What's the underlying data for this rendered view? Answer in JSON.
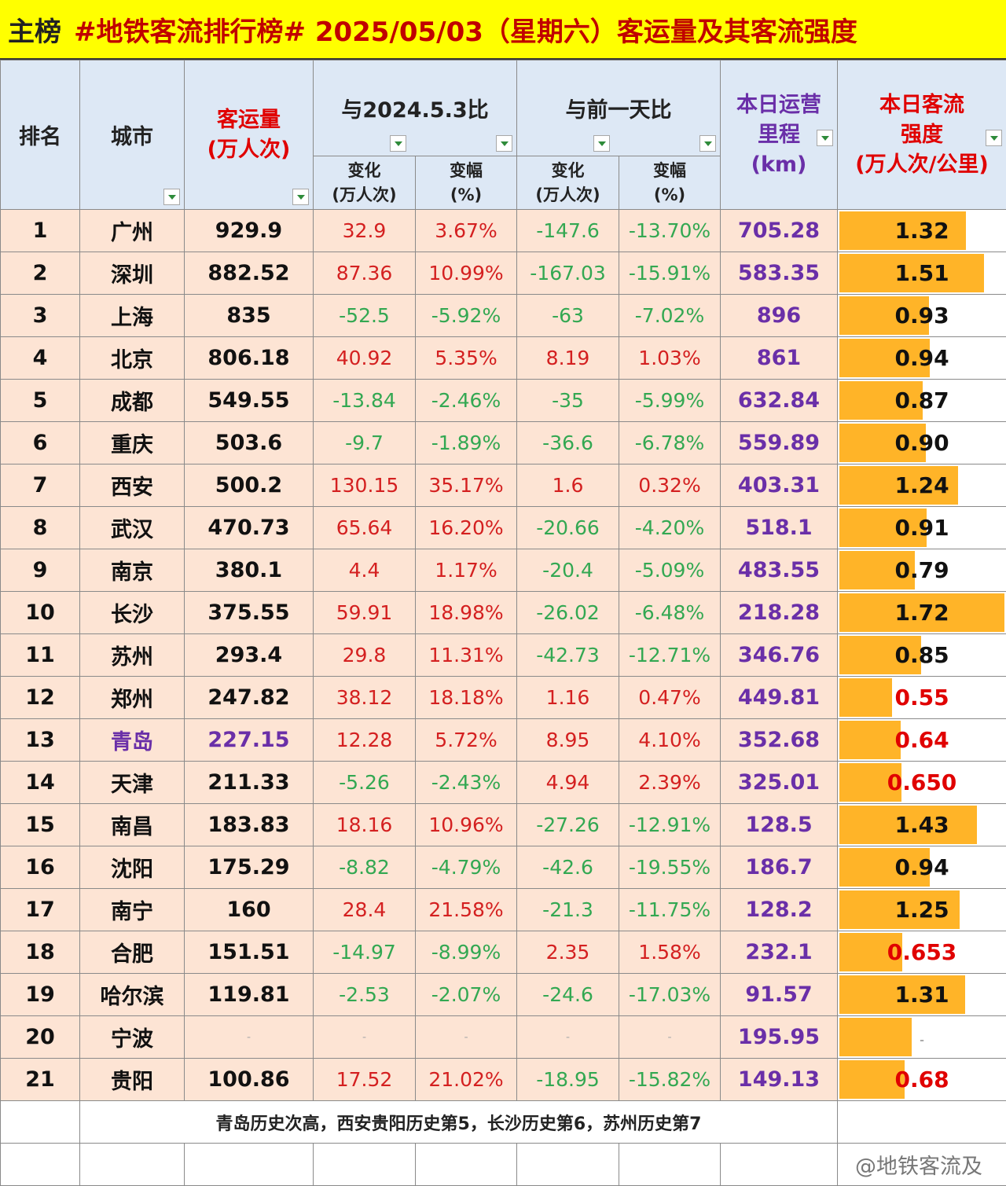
{
  "title": {
    "main": "主榜",
    "rest": "#地铁客流排行榜# 2025/05/03（星期六）客运量及其客流强度"
  },
  "headers": {
    "rank": "排名",
    "city": "城市",
    "volume_line1": "客运量",
    "volume_line2": "(万人次)",
    "yoy_group": "与2024.5.3比",
    "dod_group": "与前一天比",
    "change_line1": "变化",
    "change_line2": "(万人次)",
    "pct_line1": "变幅",
    "pct_line2": "(%)",
    "km_line1": "本日运营",
    "km_line2": "里程",
    "km_line3": "(km)",
    "int_line1": "本日客流",
    "int_line2": "强度",
    "int_line3": "(万人次/公里)"
  },
  "rows": [
    {
      "rank": "1",
      "city": "广州",
      "volume": "929.9",
      "yoy_chg": "32.9",
      "yoy_pct": "3.67%",
      "dod_chg": "-147.6",
      "dod_pct": "-13.70%",
      "km": "705.28",
      "intensity": "1.32",
      "intensity_value": 1.32
    },
    {
      "rank": "2",
      "city": "深圳",
      "volume": "882.52",
      "yoy_chg": "87.36",
      "yoy_pct": "10.99%",
      "dod_chg": "-167.03",
      "dod_pct": "-15.91%",
      "km": "583.35",
      "intensity": "1.51",
      "intensity_value": 1.51
    },
    {
      "rank": "3",
      "city": "上海",
      "volume": "835",
      "yoy_chg": "-52.5",
      "yoy_pct": "-5.92%",
      "dod_chg": "-63",
      "dod_pct": "-7.02%",
      "km": "896",
      "intensity": "0.93",
      "intensity_value": 0.93
    },
    {
      "rank": "4",
      "city": "北京",
      "volume": "806.18",
      "yoy_chg": "40.92",
      "yoy_pct": "5.35%",
      "dod_chg": "8.19",
      "dod_pct": "1.03%",
      "km": "861",
      "intensity": "0.94",
      "intensity_value": 0.94
    },
    {
      "rank": "5",
      "city": "成都",
      "volume": "549.55",
      "yoy_chg": "-13.84",
      "yoy_pct": "-2.46%",
      "dod_chg": "-35",
      "dod_pct": "-5.99%",
      "km": "632.84",
      "intensity": "0.87",
      "intensity_value": 0.87
    },
    {
      "rank": "6",
      "city": "重庆",
      "volume": "503.6",
      "yoy_chg": "-9.7",
      "yoy_pct": "-1.89%",
      "dod_chg": "-36.6",
      "dod_pct": "-6.78%",
      "km": "559.89",
      "intensity": "0.90",
      "intensity_value": 0.9
    },
    {
      "rank": "7",
      "city": "西安",
      "volume": "500.2",
      "yoy_chg": "130.15",
      "yoy_pct": "35.17%",
      "dod_chg": "1.6",
      "dod_pct": "0.32%",
      "km": "403.31",
      "intensity": "1.24",
      "intensity_value": 1.24
    },
    {
      "rank": "8",
      "city": "武汉",
      "volume": "470.73",
      "yoy_chg": "65.64",
      "yoy_pct": "16.20%",
      "dod_chg": "-20.66",
      "dod_pct": "-4.20%",
      "km": "518.1",
      "intensity": "0.91",
      "intensity_value": 0.91
    },
    {
      "rank": "9",
      "city": "南京",
      "volume": "380.1",
      "yoy_chg": "4.4",
      "yoy_pct": "1.17%",
      "dod_chg": "-20.4",
      "dod_pct": "-5.09%",
      "km": "483.55",
      "intensity": "0.79",
      "intensity_value": 0.79
    },
    {
      "rank": "10",
      "city": "长沙",
      "volume": "375.55",
      "yoy_chg": "59.91",
      "yoy_pct": "18.98%",
      "dod_chg": "-26.02",
      "dod_pct": "-6.48%",
      "km": "218.28",
      "intensity": "1.72",
      "intensity_value": 1.72
    },
    {
      "rank": "11",
      "city": "苏州",
      "volume": "293.4",
      "yoy_chg": "29.8",
      "yoy_pct": "11.31%",
      "dod_chg": "-42.73",
      "dod_pct": "-12.71%",
      "km": "346.76",
      "intensity": "0.85",
      "intensity_value": 0.85
    },
    {
      "rank": "12",
      "city": "郑州",
      "volume": "247.82",
      "yoy_chg": "38.12",
      "yoy_pct": "18.18%",
      "dod_chg": "1.16",
      "dod_pct": "0.47%",
      "km": "449.81",
      "intensity": "0.55",
      "intensity_value": 0.55
    },
    {
      "rank": "13",
      "city": "青岛",
      "volume": "227.15",
      "yoy_chg": "12.28",
      "yoy_pct": "5.72%",
      "dod_chg": "8.95",
      "dod_pct": "4.10%",
      "km": "352.68",
      "intensity": "0.64",
      "intensity_value": 0.64,
      "highlight": true
    },
    {
      "rank": "14",
      "city": "天津",
      "volume": "211.33",
      "yoy_chg": "-5.26",
      "yoy_pct": "-2.43%",
      "dod_chg": "4.94",
      "dod_pct": "2.39%",
      "km": "325.01",
      "intensity": "0.650",
      "intensity_value": 0.65
    },
    {
      "rank": "15",
      "city": "南昌",
      "volume": "183.83",
      "yoy_chg": "18.16",
      "yoy_pct": "10.96%",
      "dod_chg": "-27.26",
      "dod_pct": "-12.91%",
      "km": "128.5",
      "intensity": "1.43",
      "intensity_value": 1.43
    },
    {
      "rank": "16",
      "city": "沈阳",
      "volume": "175.29",
      "yoy_chg": "-8.82",
      "yoy_pct": "-4.79%",
      "dod_chg": "-42.6",
      "dod_pct": "-19.55%",
      "km": "186.7",
      "intensity": "0.94",
      "intensity_value": 0.94
    },
    {
      "rank": "17",
      "city": "南宁",
      "volume": "160",
      "yoy_chg": "28.4",
      "yoy_pct": "21.58%",
      "dod_chg": "-21.3",
      "dod_pct": "-11.75%",
      "km": "128.2",
      "intensity": "1.25",
      "intensity_value": 1.25
    },
    {
      "rank": "18",
      "city": "合肥",
      "volume": "151.51",
      "yoy_chg": "-14.97",
      "yoy_pct": "-8.99%",
      "dod_chg": "2.35",
      "dod_pct": "1.58%",
      "km": "232.1",
      "intensity": "0.653",
      "intensity_value": 0.653
    },
    {
      "rank": "19",
      "city": "哈尔滨",
      "volume": "119.81",
      "yoy_chg": "-2.53",
      "yoy_pct": "-2.07%",
      "dod_chg": "-24.6",
      "dod_pct": "-17.03%",
      "km": "91.57",
      "intensity": "1.31",
      "intensity_value": 1.31
    },
    {
      "rank": "20",
      "city": "宁波",
      "volume": "-",
      "yoy_chg": "-",
      "yoy_pct": "-",
      "dod_chg": "-",
      "dod_pct": "-",
      "km": "195.95",
      "intensity": "-",
      "intensity_value": 0.75
    },
    {
      "rank": "21",
      "city": "贵阳",
      "volume": "100.86",
      "yoy_chg": "17.52",
      "yoy_pct": "21.02%",
      "dod_chg": "-18.95",
      "dod_pct": "-15.82%",
      "km": "149.13",
      "intensity": "0.68",
      "intensity_value": 0.68
    }
  ],
  "footnote": "青岛历史次高，西安贵阳历史第5，长沙历史第6，苏州历史第7",
  "watermark": {
    "handle": "@地铁客流及"
  },
  "colors": {
    "title_bg": "#ffff00",
    "row_bg": "#fde4d4",
    "bar": "#ffb428",
    "positive": "#d42020",
    "negative": "#33a852",
    "km": "#6a2fa8"
  }
}
